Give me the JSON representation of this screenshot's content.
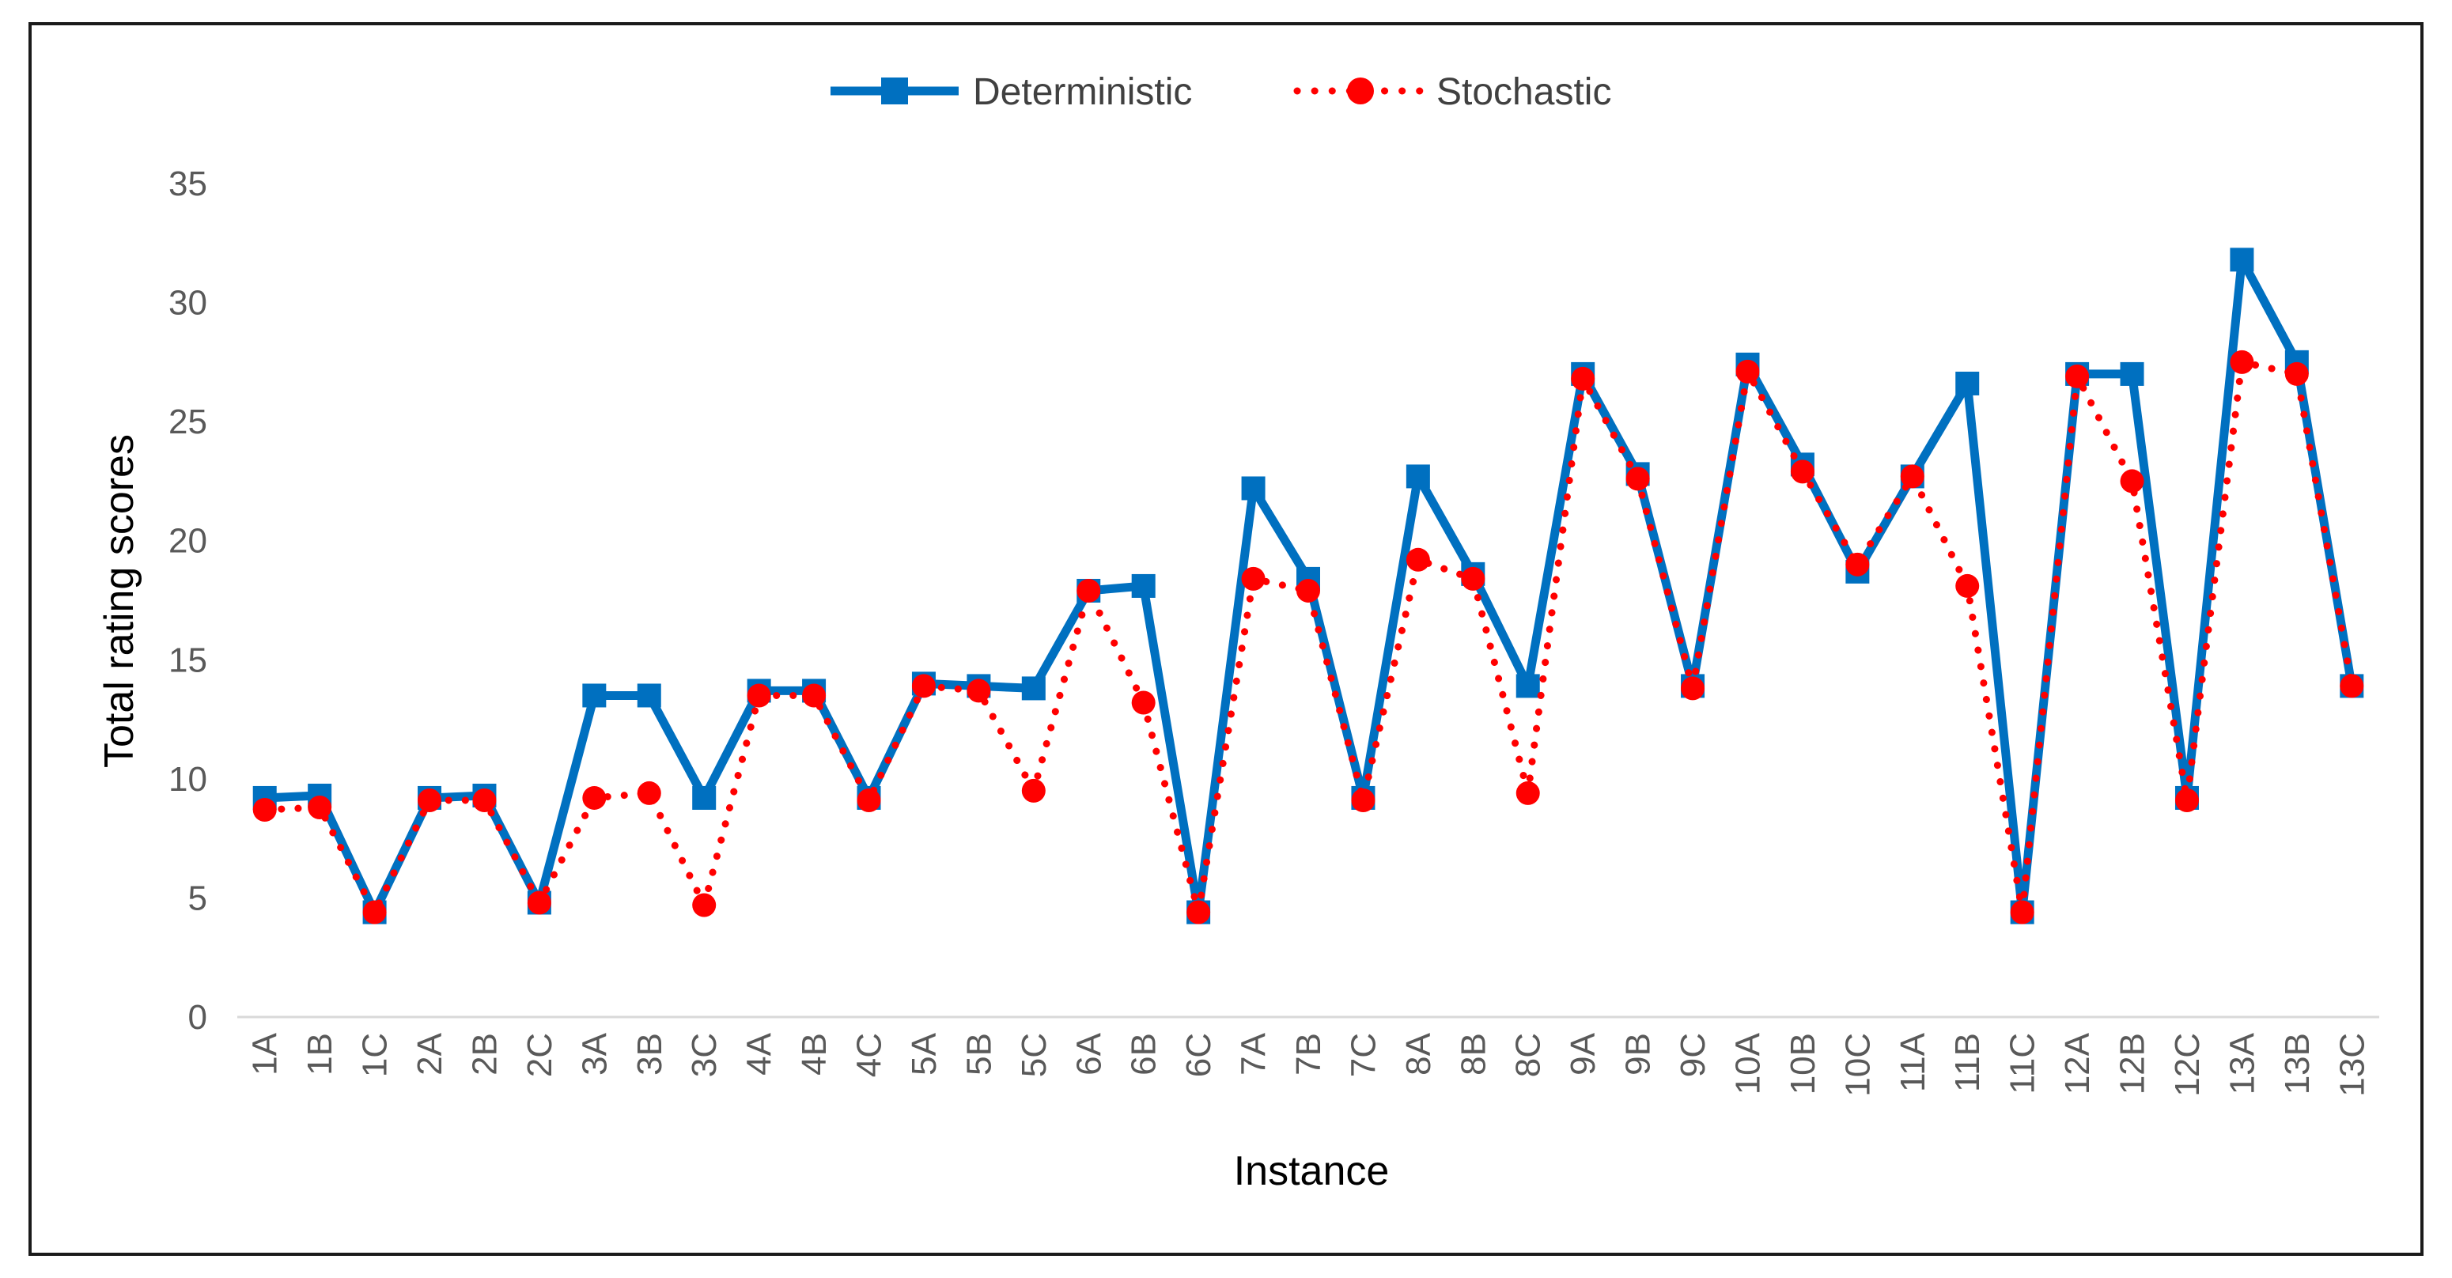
{
  "chart_data": {
    "type": "line",
    "title": "",
    "xlabel": "Instance",
    "ylabel": "Total rating scores",
    "ylim": [
      0,
      35
    ],
    "yticks": [
      0,
      5,
      10,
      15,
      20,
      25,
      30,
      35
    ],
    "ytick_labels": [
      "0",
      "5",
      "10",
      "15",
      "20",
      "25",
      "30",
      "35"
    ],
    "grid": false,
    "legend_position": "top-center",
    "categories": [
      "1A",
      "1B",
      "1C",
      "2A",
      "2B",
      "2C",
      "3A",
      "3B",
      "3C",
      "4A",
      "4B",
      "4C",
      "5A",
      "5B",
      "5C",
      "6A",
      "6B",
      "6C",
      "7A",
      "7B",
      "7C",
      "8A",
      "8B",
      "8C",
      "9A",
      "9B",
      "9C",
      "10A",
      "10B",
      "10C",
      "11A",
      "11B",
      "11C",
      "12A",
      "12B",
      "12C",
      "13A",
      "13B",
      "13C"
    ],
    "series": [
      {
        "name": "Deterministic",
        "color": "#0070C0",
        "line_style": "solid",
        "marker": "square",
        "values": [
          9.2,
          9.3,
          4.4,
          9.2,
          9.3,
          4.8,
          13.5,
          13.5,
          9.2,
          13.7,
          13.7,
          9.2,
          14.0,
          13.9,
          13.8,
          17.9,
          18.1,
          4.4,
          22.2,
          18.4,
          9.2,
          22.7,
          18.6,
          13.9,
          27.0,
          22.8,
          13.9,
          27.4,
          23.2,
          18.7,
          22.7,
          26.6,
          4.4,
          27.0,
          27.0,
          9.2,
          31.8,
          27.5,
          13.9
        ]
      },
      {
        "name": "Stochastic",
        "color": "#FF0000",
        "line_style": "dotted",
        "marker": "circle",
        "values": [
          8.7,
          8.8,
          4.4,
          9.1,
          9.1,
          4.8,
          9.2,
          9.4,
          4.7,
          13.5,
          13.5,
          9.1,
          13.9,
          13.7,
          9.5,
          17.9,
          13.2,
          4.4,
          18.4,
          17.9,
          9.1,
          19.2,
          18.4,
          9.4,
          26.8,
          22.6,
          13.8,
          27.1,
          22.9,
          19.0,
          22.7,
          18.1,
          4.4,
          26.9,
          22.5,
          9.1,
          27.5,
          27.0,
          13.9
        ]
      }
    ]
  }
}
